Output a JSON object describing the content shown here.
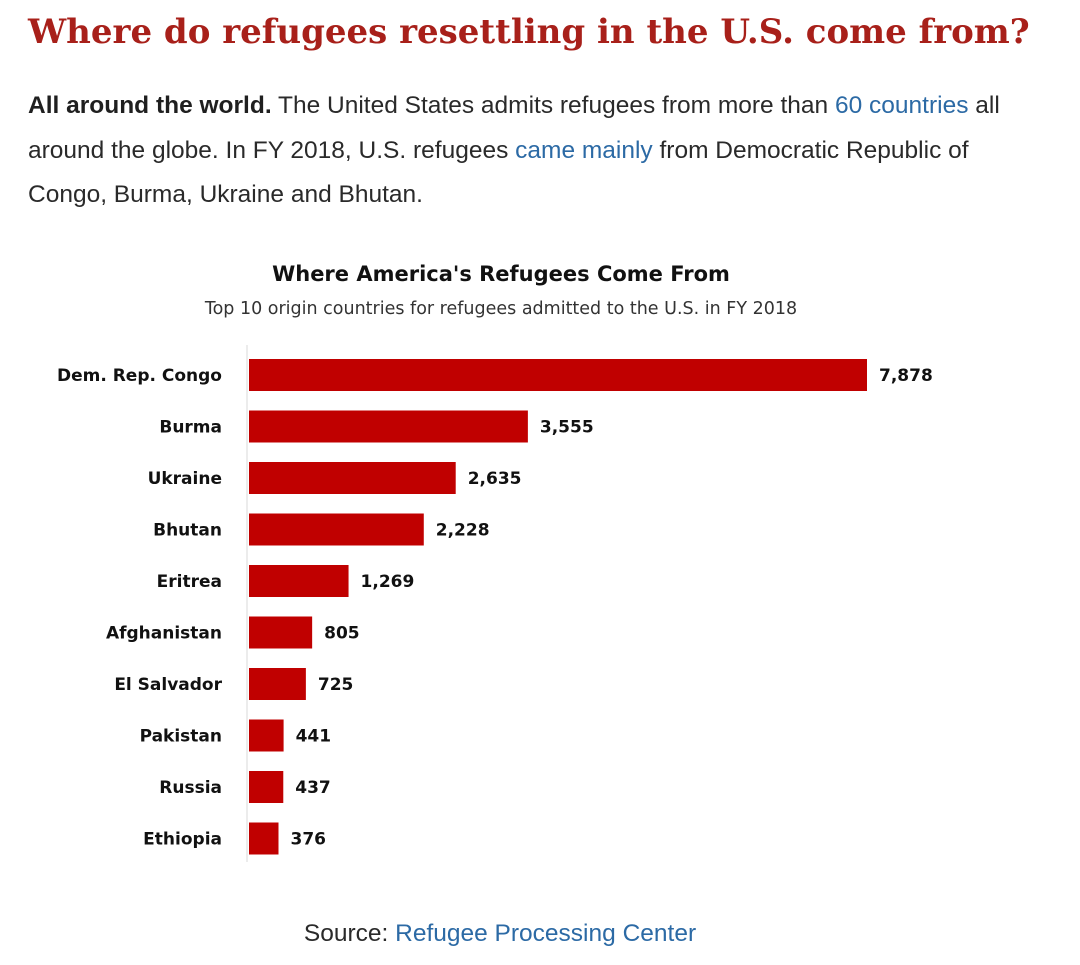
{
  "article": {
    "heading": "Where do refugees resettling in the U.S. come from?",
    "intro_bold": "All around the world.",
    "intro_text1": " The United States admits refugees from more than ",
    "intro_link1": "60 countries",
    "intro_text2": " all around the globe. In FY 2018, U.S. refugees ",
    "intro_link2": "came mainly",
    "intro_text3": " from Democratic Republic of Congo, Burma, Ukraine and Bhutan.",
    "source_prefix": "Source: ",
    "source_link": "Refugee Processing Center"
  },
  "colors": {
    "heading": "#a8201a",
    "bar": "#c00000",
    "link": "#2c6aa5"
  },
  "chart_data": {
    "type": "bar",
    "orientation": "horizontal",
    "title": "Where America's Refugees Come From",
    "subtitle": "Top 10 origin countries for refugees admitted to the U.S. in FY 2018",
    "categories": [
      "Dem. Rep. Congo",
      "Burma",
      "Ukraine",
      "Bhutan",
      "Eritrea",
      "Afghanistan",
      "El Salvador",
      "Pakistan",
      "Russia",
      "Ethiopia"
    ],
    "values": [
      7878,
      3555,
      2635,
      2228,
      1269,
      805,
      725,
      441,
      437,
      376
    ],
    "value_labels": [
      "7,878",
      "3,555",
      "2,635",
      "2,228",
      "1,269",
      "805",
      "725",
      "441",
      "437",
      "376"
    ],
    "xlim": [
      0,
      7878
    ],
    "xlabel": "",
    "ylabel": "",
    "grid": false,
    "legend": "none"
  }
}
